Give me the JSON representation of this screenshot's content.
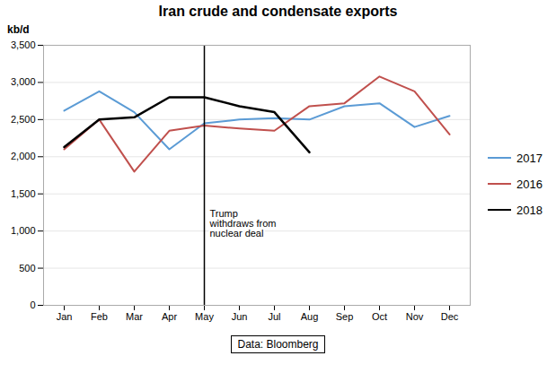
{
  "chart_data": {
    "type": "line",
    "title": "Iran crude and condensate exports",
    "ylabel": "kb/d",
    "categories": [
      "Jan",
      "Feb",
      "Mar",
      "Apr",
      "May",
      "Jun",
      "Jul",
      "Aug",
      "Sep",
      "Oct",
      "Nov",
      "Dec"
    ],
    "series": [
      {
        "name": "2017",
        "color": "#5B9BD5",
        "values": [
          2620,
          2880,
          2600,
          2100,
          2450,
          2500,
          2520,
          2500,
          2680,
          2720,
          2400,
          2550
        ]
      },
      {
        "name": "2016",
        "color": "#C0504D",
        "values": [
          2100,
          2500,
          1800,
          2350,
          2420,
          2380,
          2350,
          2680,
          2720,
          3080,
          2880,
          2300
        ]
      },
      {
        "name": "2018",
        "color": "#000000",
        "values": [
          2130,
          2500,
          2530,
          2800,
          2800,
          2680,
          2600,
          2060,
          null,
          null,
          null,
          null
        ]
      }
    ],
    "ylim": [
      0,
      3500
    ],
    "yticks": [
      0,
      500,
      {
        "value": 1000,
        "label": "1,000"
      },
      {
        "value": 1500,
        "label": "1,500"
      },
      {
        "value": 2000,
        "label": "2,000"
      },
      {
        "value": 2500,
        "label": "2,500"
      },
      {
        "value": 3000,
        "label": "3,000"
      },
      {
        "value": 3500,
        "label": "3,500"
      }
    ],
    "grid": true,
    "legend": "right",
    "vline": "May",
    "annotations": [
      {
        "text": "Trump\nwithdraws from\nnuclear deal",
        "x": "May",
        "y": 1100
      }
    ],
    "source": "Data: Bloomberg"
  }
}
